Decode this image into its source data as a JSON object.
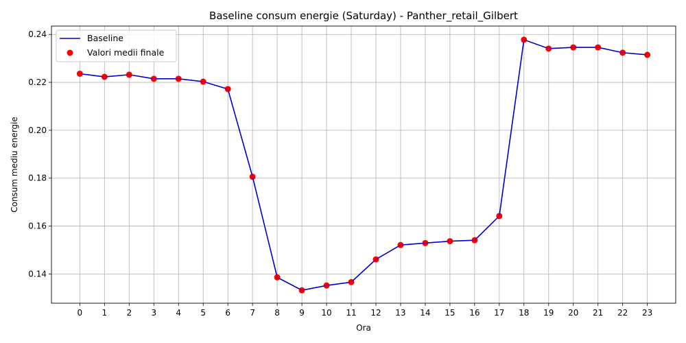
{
  "chart_data": {
    "type": "line",
    "title": "Baseline consum energie (Saturday) - Panther_retail_Gilbert",
    "xlabel": "Ora",
    "ylabel": "Consum mediu energie",
    "x": [
      0,
      1,
      2,
      3,
      4,
      5,
      6,
      7,
      8,
      9,
      10,
      11,
      12,
      13,
      14,
      15,
      16,
      17,
      18,
      19,
      20,
      21,
      22,
      23
    ],
    "xticks": [
      "0",
      "1",
      "2",
      "3",
      "4",
      "5",
      "6",
      "7",
      "8",
      "9",
      "10",
      "11",
      "12",
      "13",
      "14",
      "15",
      "16",
      "17",
      "18",
      "19",
      "20",
      "21",
      "22",
      "23"
    ],
    "yticks": [
      "0.14",
      "0.16",
      "0.18",
      "0.20",
      "0.22",
      "0.24"
    ],
    "ytick_values": [
      0.14,
      0.16,
      0.18,
      0.2,
      0.22,
      0.24
    ],
    "xlim": [
      -1.15,
      24.15
    ],
    "ylim": [
      0.1278,
      0.2435
    ],
    "grid": true,
    "legend_position": "top-left",
    "series": [
      {
        "name": "Baseline",
        "kind": "line",
        "color": "#0000cc",
        "values": [
          0.2236,
          0.2223,
          0.2232,
          0.2215,
          0.2215,
          0.2203,
          0.2172,
          0.1806,
          0.1386,
          0.1332,
          0.1352,
          0.1366,
          0.1461,
          0.1521,
          0.1529,
          0.1537,
          0.1541,
          0.1642,
          0.2378,
          0.2341,
          0.2346,
          0.2346,
          0.2324,
          0.2315
        ]
      },
      {
        "name": "Valori medii finale",
        "kind": "scatter",
        "color": "#ff0000",
        "values": [
          0.2236,
          0.2223,
          0.2232,
          0.2215,
          0.2215,
          0.2203,
          0.2172,
          0.1806,
          0.1386,
          0.1332,
          0.1352,
          0.1366,
          0.1461,
          0.1521,
          0.1529,
          0.1537,
          0.1541,
          0.1642,
          0.2378,
          0.2341,
          0.2346,
          0.2346,
          0.2324,
          0.2315
        ]
      }
    ]
  }
}
